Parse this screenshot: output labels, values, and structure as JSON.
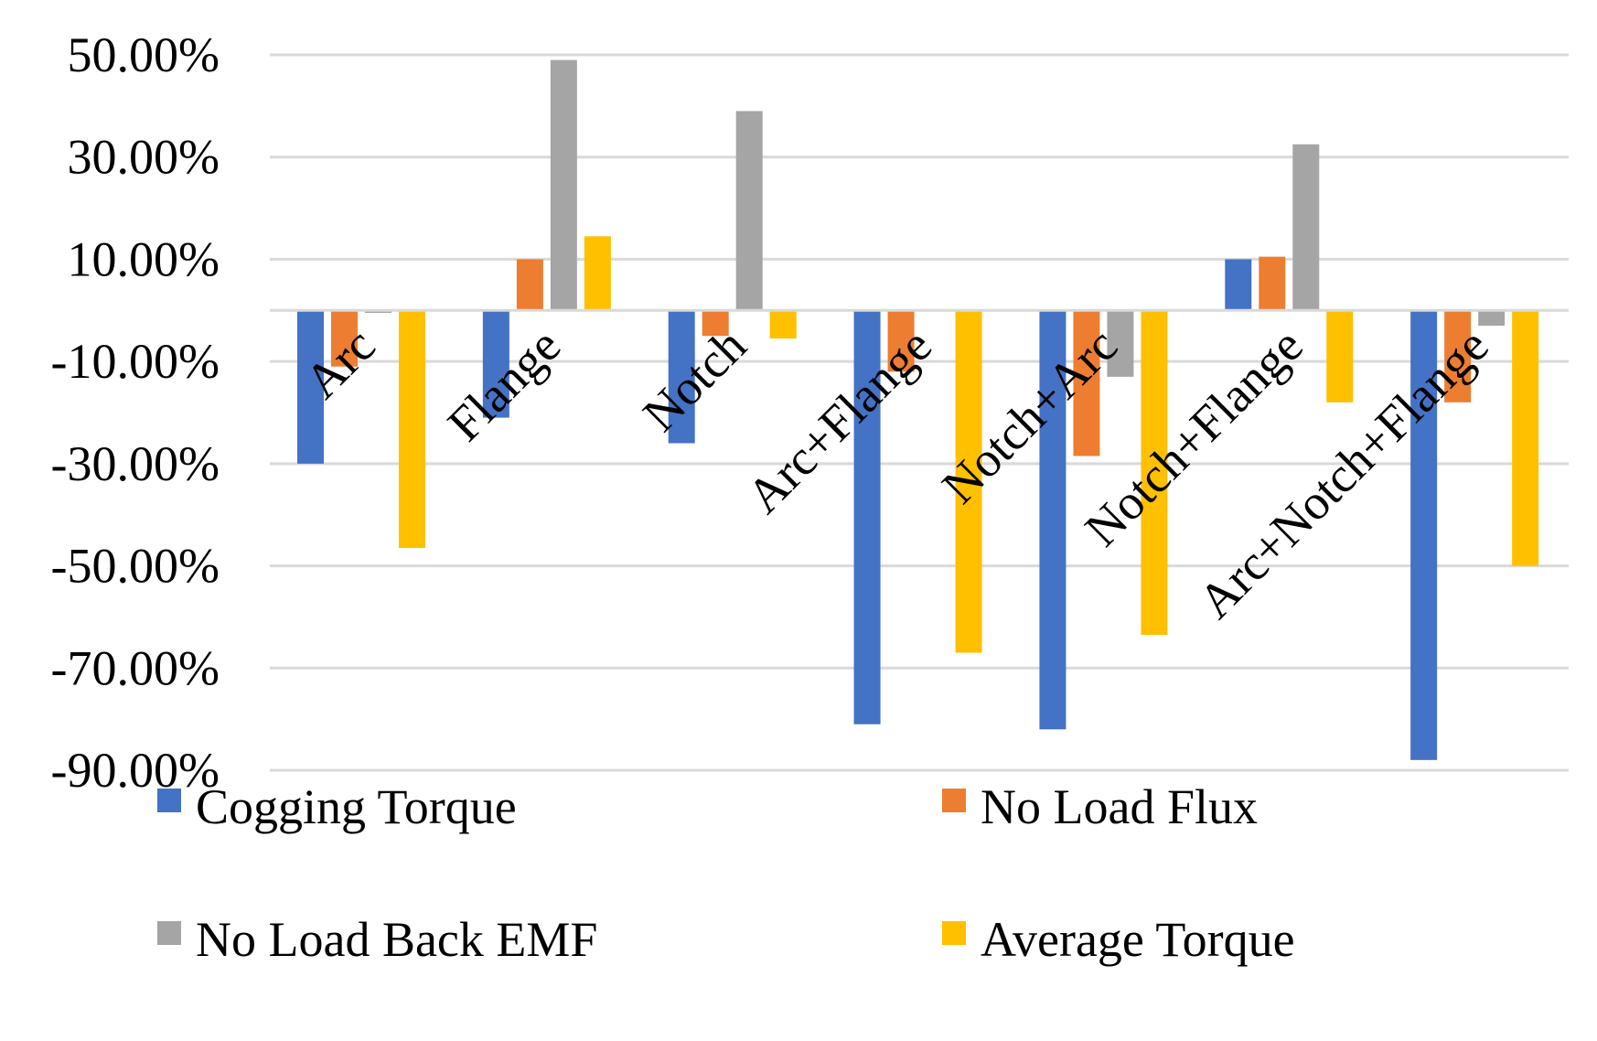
{
  "chart_data": {
    "type": "bar",
    "title": "",
    "xlabel": "",
    "ylabel": "",
    "ylim": [
      -90,
      50
    ],
    "yticks": [
      50,
      30,
      10,
      -10,
      -30,
      -50,
      -70,
      -90
    ],
    "ytick_labels": [
      "50.00%",
      "30.00%",
      "10.00%",
      "-10.00%",
      "-30.00%",
      "-50.00%",
      "-70.00%",
      "-90.00%"
    ],
    "categories": [
      "Arc",
      "Flange",
      "Notch",
      "Arc+Flange",
      "Notch+Arc",
      "Notch+Flange",
      "Arc+Notch+Flange"
    ],
    "series": [
      {
        "name": "Cogging Torque",
        "color": "#4472c4",
        "values": [
          -30,
          -21,
          -26,
          -81,
          -82,
          10,
          -88
        ]
      },
      {
        "name": "No Load Flux",
        "color": "#ed7d31",
        "values": [
          -11,
          10,
          -5,
          -12,
          -28.5,
          10.5,
          -18
        ]
      },
      {
        "name": "No Load Back EMF",
        "color": "#a5a5a5",
        "values": [
          -0.5,
          49,
          39,
          0,
          -13,
          32.5,
          -3
        ]
      },
      {
        "name": "Average Torque",
        "color": "#ffc000",
        "values": [
          -46.5,
          14.5,
          -5.5,
          -67,
          -63.5,
          -18,
          -50
        ]
      }
    ],
    "grid": true,
    "legend_position": "bottom"
  }
}
